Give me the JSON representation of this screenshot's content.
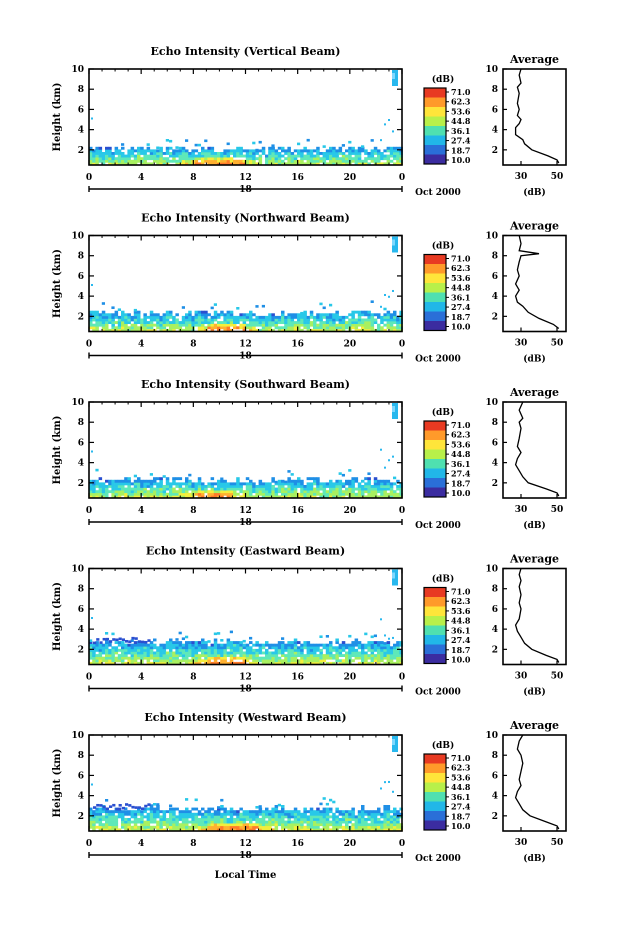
{
  "colorbar": {
    "unit": "(dB)",
    "labels": [
      "71.0",
      "62.3",
      "53.6",
      "44.8",
      "36.1",
      "27.4",
      "18.7",
      "10.0"
    ],
    "colors": [
      "#3b2ca0",
      "#2a6fd8",
      "#21b7e8",
      "#4fe0b0",
      "#b8f04a",
      "#ffe53a",
      "#ff9a2a",
      "#e83a22"
    ]
  },
  "date_label": "Oct 2000",
  "day_label": "18",
  "xlabel": "Local Time",
  "chart_data": [
    {
      "type": "heatmap",
      "title": "Echo Intensity (Vertical Beam)",
      "ylabel": "Height (km)",
      "x_ticks": [
        "0",
        "4",
        "8",
        "12",
        "16",
        "20",
        "0"
      ],
      "y_ticks": [
        "2",
        "4",
        "6",
        "8",
        "10"
      ],
      "xlim": [
        0,
        24
      ],
      "ylim": [
        0.5,
        10
      ],
      "layer_top_km": 2.0,
      "core_hours": [
        8,
        12
      ],
      "profile": {
        "title": "Average",
        "xlabel": "(dB)",
        "xticks": [
          "30",
          "50"
        ],
        "xlim": [
          20,
          55
        ],
        "y_ticks": [
          "2",
          "4",
          "6",
          "8",
          "10"
        ],
        "points": [
          [
            10,
            30
          ],
          [
            9.4,
            29
          ],
          [
            8.6,
            30
          ],
          [
            8.2,
            28
          ],
          [
            7.6,
            29
          ],
          [
            6.6,
            28
          ],
          [
            6.0,
            29
          ],
          [
            5.4,
            28
          ],
          [
            5.0,
            30
          ],
          [
            4.6,
            29
          ],
          [
            4.2,
            27
          ],
          [
            3.5,
            27
          ],
          [
            3.0,
            31
          ],
          [
            2.6,
            32
          ],
          [
            2.0,
            36
          ],
          [
            1.4,
            45
          ],
          [
            1.0,
            50
          ],
          [
            0.7,
            51
          ]
        ]
      }
    },
    {
      "type": "heatmap",
      "title": "Echo Intensity (Northward Beam)",
      "ylabel": "Height (km)",
      "x_ticks": [
        "0",
        "4",
        "8",
        "12",
        "16",
        "20",
        "0"
      ],
      "y_ticks": [
        "2",
        "4",
        "6",
        "8",
        "10"
      ],
      "xlim": [
        0,
        24
      ],
      "ylim": [
        0.5,
        10
      ],
      "layer_top_km": 2.2,
      "core_hours": [
        9,
        12
      ],
      "profile": {
        "title": "Average",
        "xlabel": "(dB)",
        "xticks": [
          "30",
          "50"
        ],
        "xlim": [
          20,
          55
        ],
        "y_ticks": [
          "2",
          "4",
          "6",
          "8",
          "10"
        ],
        "points": [
          [
            10,
            29
          ],
          [
            9.2,
            30
          ],
          [
            8.5,
            29
          ],
          [
            8.2,
            40
          ],
          [
            8.0,
            30
          ],
          [
            7.4,
            29
          ],
          [
            6.6,
            28
          ],
          [
            6.0,
            29
          ],
          [
            5.2,
            27
          ],
          [
            4.6,
            29
          ],
          [
            4.0,
            27
          ],
          [
            3.4,
            28
          ],
          [
            3.0,
            31
          ],
          [
            2.4,
            34
          ],
          [
            1.8,
            40
          ],
          [
            1.2,
            48
          ],
          [
            0.8,
            51
          ]
        ]
      }
    },
    {
      "type": "heatmap",
      "title": "Echo Intensity (Southward Beam)",
      "ylabel": "Height (km)",
      "x_ticks": [
        "0",
        "4",
        "8",
        "12",
        "16",
        "20",
        "0"
      ],
      "y_ticks": [
        "2",
        "4",
        "6",
        "8",
        "10"
      ],
      "xlim": [
        0,
        24
      ],
      "ylim": [
        0.5,
        10
      ],
      "layer_top_km": 2.2,
      "core_hours": [
        8,
        11
      ],
      "profile": {
        "title": "Average",
        "xlabel": "(dB)",
        "xticks": [
          "30",
          "50"
        ],
        "xlim": [
          20,
          55
        ],
        "y_ticks": [
          "2",
          "4",
          "6",
          "8",
          "10"
        ],
        "points": [
          [
            10,
            31
          ],
          [
            9.2,
            29
          ],
          [
            8.4,
            31
          ],
          [
            8.0,
            29
          ],
          [
            7.4,
            30
          ],
          [
            6.4,
            29
          ],
          [
            5.6,
            28
          ],
          [
            5.0,
            30
          ],
          [
            4.4,
            28
          ],
          [
            3.8,
            27
          ],
          [
            3.2,
            29
          ],
          [
            2.6,
            31
          ],
          [
            2.0,
            34
          ],
          [
            1.4,
            44
          ],
          [
            1.0,
            50
          ],
          [
            0.7,
            51
          ]
        ]
      }
    },
    {
      "type": "heatmap",
      "title": "Echo Intensity (Eastward Beam)",
      "ylabel": "Height (km)",
      "x_ticks": [
        "0",
        "4",
        "8",
        "12",
        "16",
        "20",
        "0"
      ],
      "y_ticks": [
        "2",
        "4",
        "6",
        "8",
        "10"
      ],
      "xlim": [
        0,
        24
      ],
      "ylim": [
        0.5,
        10
      ],
      "layer_top_km": 2.6,
      "core_hours": [
        9,
        12
      ],
      "profile": {
        "title": "Average",
        "xlabel": "(dB)",
        "xticks": [
          "30",
          "50"
        ],
        "xlim": [
          20,
          55
        ],
        "y_ticks": [
          "2",
          "4",
          "6",
          "8",
          "10"
        ],
        "points": [
          [
            10,
            30
          ],
          [
            9.4,
            29
          ],
          [
            8.8,
            30
          ],
          [
            8.2,
            29
          ],
          [
            7.4,
            30
          ],
          [
            6.6,
            29
          ],
          [
            6.0,
            30
          ],
          [
            5.0,
            29
          ],
          [
            4.4,
            27
          ],
          [
            3.8,
            28
          ],
          [
            3.2,
            30
          ],
          [
            2.6,
            32
          ],
          [
            2.0,
            36
          ],
          [
            1.4,
            44
          ],
          [
            1.0,
            50
          ],
          [
            0.7,
            51
          ]
        ]
      }
    },
    {
      "type": "heatmap",
      "title": "Echo Intensity (Westward Beam)",
      "ylabel": "Height (km)",
      "x_ticks": [
        "0",
        "4",
        "8",
        "12",
        "16",
        "20",
        "0"
      ],
      "y_ticks": [
        "2",
        "4",
        "6",
        "8",
        "10"
      ],
      "xlim": [
        0,
        24
      ],
      "ylim": [
        0.5,
        10
      ],
      "layer_top_km": 2.6,
      "core_hours": [
        9,
        13
      ],
      "profile": {
        "title": "Average",
        "xlabel": "(dB)",
        "xticks": [
          "30",
          "50"
        ],
        "xlim": [
          20,
          55
        ],
        "y_ticks": [
          "2",
          "4",
          "6",
          "8",
          "10"
        ],
        "points": [
          [
            10,
            31
          ],
          [
            9.4,
            29
          ],
          [
            8.6,
            28
          ],
          [
            8.0,
            30
          ],
          [
            7.2,
            31
          ],
          [
            6.4,
            30
          ],
          [
            5.6,
            29
          ],
          [
            5.0,
            30
          ],
          [
            4.4,
            28
          ],
          [
            3.8,
            27
          ],
          [
            3.2,
            29
          ],
          [
            2.6,
            31
          ],
          [
            2.0,
            35
          ],
          [
            1.4,
            44
          ],
          [
            1.0,
            50
          ],
          [
            0.7,
            51
          ]
        ]
      }
    }
  ]
}
